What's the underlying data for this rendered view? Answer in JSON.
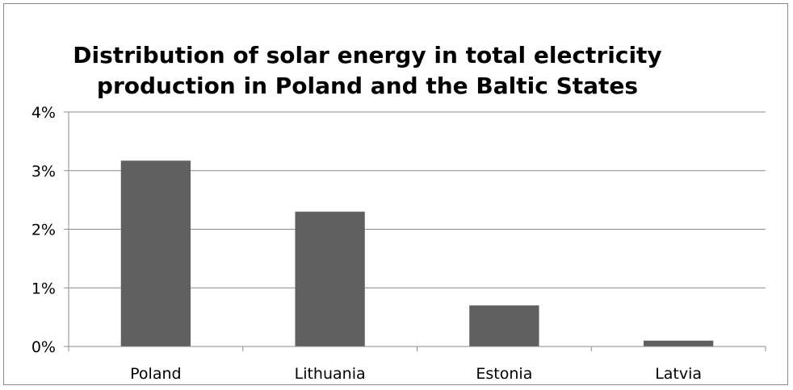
{
  "chart_data": {
    "type": "bar",
    "title": "Distribution of solar energy in total electricity production in Poland and the Baltic States",
    "categories": [
      "Poland",
      "Lithuania",
      "Estonia",
      "Latvia"
    ],
    "values": [
      3.17,
      2.3,
      0.7,
      0.1
    ],
    "y_unit": "%",
    "ylim": [
      0,
      4
    ],
    "y_ticks": [
      "0%",
      "1%",
      "2%",
      "3%",
      "4%"
    ],
    "y_tick_values": [
      0,
      1,
      2,
      3,
      4
    ],
    "xlabel": "",
    "ylabel": "",
    "grid": true,
    "legend": "none",
    "colors": {
      "bar": "#606060",
      "grid": "#8c8c8c",
      "axis": "#8c8c8c"
    }
  }
}
